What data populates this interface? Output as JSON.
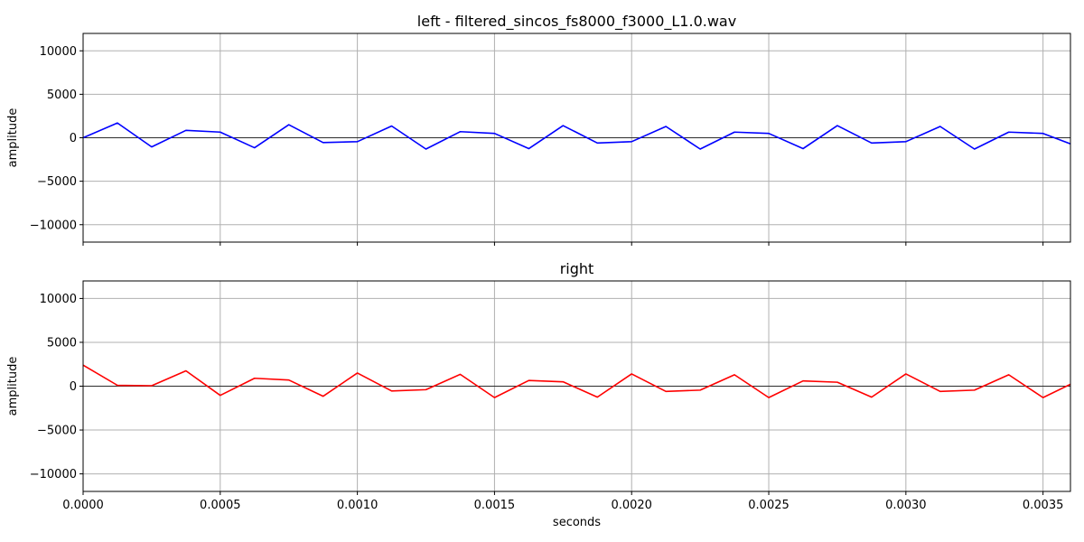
{
  "chart_data": [
    {
      "type": "line",
      "title": "left - filtered_sincos_fs8000_f3000_L1.0.wav",
      "xlabel": "",
      "ylabel": "amplitude",
      "xlim": [
        0,
        0.0036
      ],
      "ylim": [
        -12000,
        12000
      ],
      "xticks": [
        "0.0000",
        "0.0005",
        "0.0010",
        "0.0015",
        "0.0020",
        "0.0025",
        "0.0030",
        "0.0035"
      ],
      "show_xtick_labels": false,
      "yticks": [
        "−10000",
        "−5000",
        "0",
        "5000",
        "10000"
      ],
      "grid": true,
      "series": [
        {
          "color": "#0000ff",
          "dt": 0.000125,
          "values": [
            0,
            1700,
            -1050,
            850,
            650,
            -1150,
            1500,
            -550,
            -450,
            1350,
            -1300,
            700,
            500,
            -1250,
            1400,
            -600,
            -450,
            1300,
            -1300,
            650,
            500,
            -1250,
            1400,
            -600,
            -450,
            1300,
            -1300,
            650,
            500,
            -1000
          ]
        }
      ]
    },
    {
      "type": "line",
      "title": "right",
      "xlabel": "seconds",
      "ylabel": "amplitude",
      "xlim": [
        0,
        0.0036
      ],
      "ylim": [
        -12000,
        12000
      ],
      "xticks": [
        "0.0000",
        "0.0005",
        "0.0010",
        "0.0015",
        "0.0020",
        "0.0025",
        "0.0030",
        "0.0035"
      ],
      "show_xtick_labels": true,
      "yticks": [
        "−10000",
        "−5000",
        "0",
        "5000",
        "10000"
      ],
      "grid": true,
      "series": [
        {
          "color": "#ff0000",
          "dt": 0.000125,
          "values": [
            2400,
            100,
            50,
            1750,
            -1050,
            900,
            700,
            -1150,
            1500,
            -550,
            -400,
            1350,
            -1300,
            650,
            500,
            -1250,
            1400,
            -600,
            -450,
            1300,
            -1300,
            600,
            450,
            -1250,
            1400,
            -600,
            -450,
            1300,
            -1300,
            600,
            300
          ]
        }
      ]
    }
  ]
}
